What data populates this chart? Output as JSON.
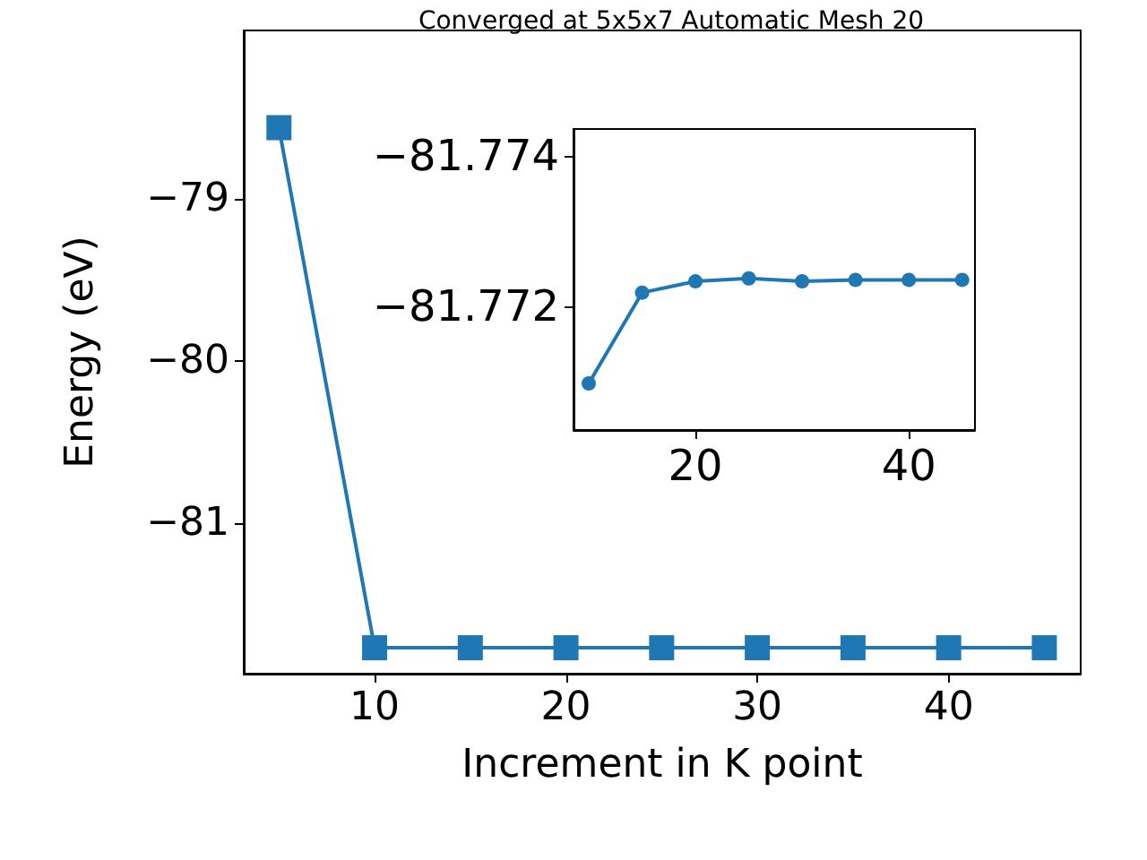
{
  "chart_data": [
    {
      "type": "line",
      "title": "Converged at 5x5x7 Automatic Mesh 20",
      "xlabel": "Increment in K point",
      "ylabel": "Energy (eV)",
      "x": [
        5,
        10,
        15,
        20,
        25,
        30,
        35,
        40,
        45
      ],
      "series": [
        {
          "color": "#1f77b4",
          "values": [
            -78.56,
            -81.77,
            -81.77,
            -81.77,
            -81.77,
            -81.77,
            -81.77,
            -81.77,
            -81.77
          ]
        }
      ],
      "xlim": [
        3.16,
        46.9
      ],
      "xticks": [
        10,
        20,
        30,
        40
      ],
      "ylim": [
        -81.93,
        -77.96
      ],
      "yticks": [
        -81,
        -80,
        -79
      ],
      "marker": "square",
      "grid": false
    },
    {
      "type": "line",
      "x": [
        10,
        15,
        20,
        25,
        30,
        35,
        40,
        45
      ],
      "series": [
        {
          "color": "#1f77b4",
          "values": [
            -81.77097,
            -81.77218,
            -81.77233,
            -81.77237,
            -81.77233,
            -81.77235,
            -81.77235,
            -81.77235
          ]
        }
      ],
      "xlim": [
        8.57,
        46.2
      ],
      "xticks": [
        20,
        40
      ],
      "ylim": [
        -81.77035,
        -81.77436
      ],
      "yticks": [
        -81.774,
        -81.772
      ],
      "marker": "circle",
      "grid": false
    }
  ]
}
